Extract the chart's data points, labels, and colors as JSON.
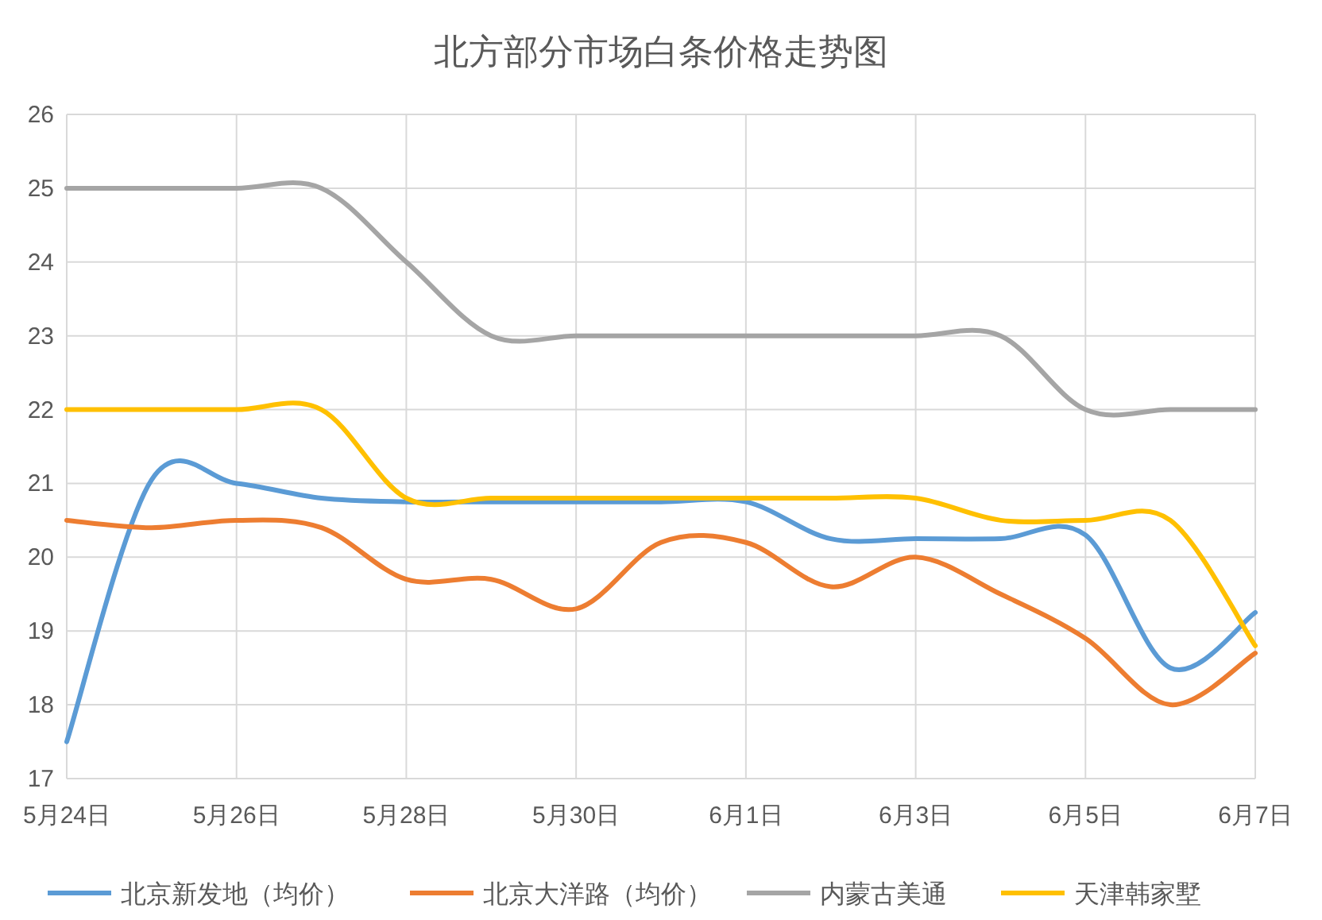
{
  "chart_data": {
    "type": "line",
    "title": "北方部分市场白条价格走势图",
    "categories": [
      "5月24日",
      null,
      "5月26日",
      null,
      "5月28日",
      null,
      "5月30日",
      null,
      "6月1日",
      null,
      "6月3日",
      null,
      "6月5日",
      null,
      "6月7日"
    ],
    "ylim": [
      17,
      26
    ],
    "yticks": [
      17,
      18,
      19,
      20,
      21,
      22,
      23,
      24,
      25,
      26
    ],
    "grid": true,
    "legend": "bottom",
    "marker": "none",
    "line_style": "solid",
    "series": [
      {
        "name": "北京新发地（均价）",
        "color": "#5b9bd5",
        "values": [
          17.5,
          21.05,
          21.0,
          20.8,
          20.75,
          20.75,
          20.75,
          20.75,
          20.75,
          20.25,
          20.25,
          20.25,
          20.3,
          18.5,
          19.25
        ]
      },
      {
        "name": "北京大洋路（均价）",
        "color": "#ed7d31",
        "values": [
          20.5,
          20.4,
          20.5,
          20.4,
          19.7,
          19.7,
          19.3,
          20.2,
          20.2,
          19.6,
          20.0,
          19.5,
          18.9,
          18.0,
          18.7
        ]
      },
      {
        "name": "内蒙古美通",
        "color": "#a5a5a5",
        "values": [
          25,
          25,
          25,
          25,
          24,
          23,
          23,
          23,
          23,
          23,
          23,
          23,
          22,
          22,
          22
        ]
      },
      {
        "name": "天津韩家墅",
        "color": "#ffc000",
        "values": [
          22,
          22,
          22,
          22,
          20.8,
          20.8,
          20.8,
          20.8,
          20.8,
          20.8,
          20.8,
          20.5,
          20.5,
          20.5,
          18.8
        ]
      }
    ]
  }
}
